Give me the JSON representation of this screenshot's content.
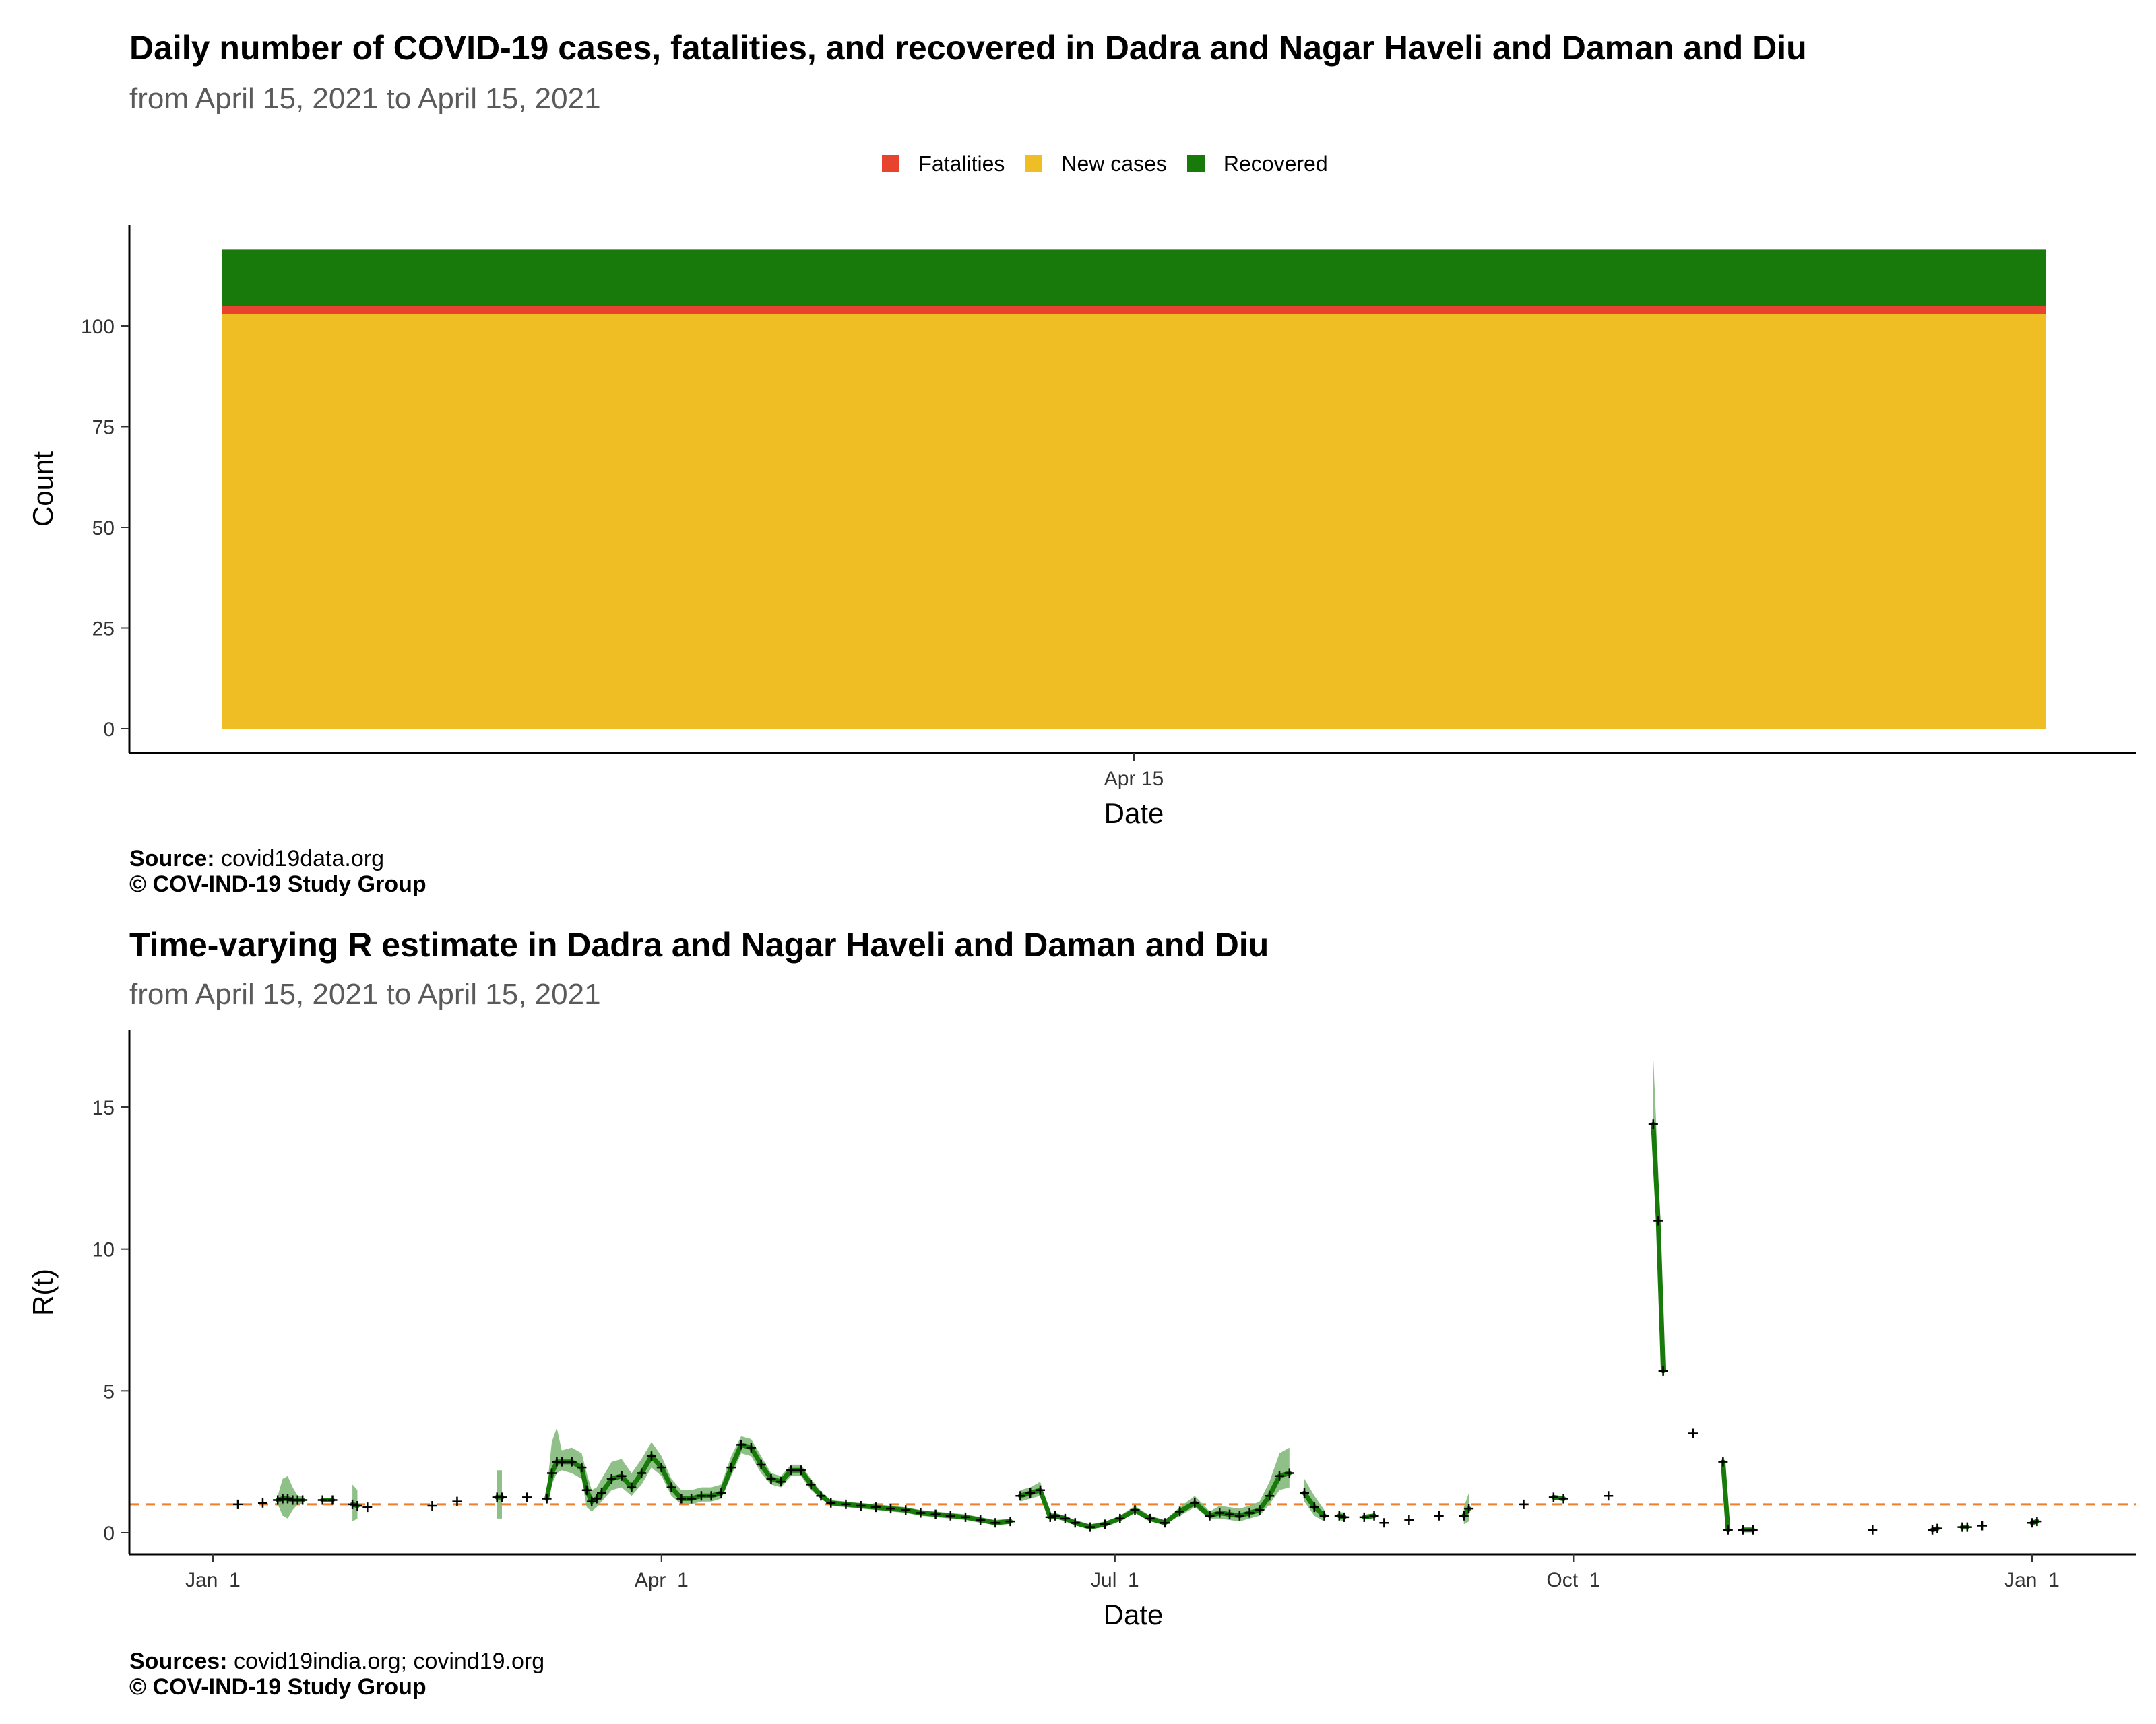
{
  "chart_data": [
    {
      "type": "bar",
      "stacked": true,
      "title": "Daily number of COVID-19 cases, fatalities, and recovered in Dadra and Nagar Haveli and Daman and Diu",
      "subtitle": "from April 15, 2021 to April 15, 2021",
      "xlabel": "Date",
      "ylabel": "Count",
      "categories": [
        "Apr 15"
      ],
      "series": [
        {
          "name": "New cases",
          "color": "#EFBE25",
          "values": [
            103
          ]
        },
        {
          "name": "Fatalities",
          "color": "#E8432E",
          "values": [
            2
          ]
        },
        {
          "name": "Recovered",
          "color": "#177A0B",
          "values": [
            14
          ]
        }
      ],
      "legend_order": [
        "Fatalities",
        "New cases",
        "Recovered"
      ],
      "ylim": [
        0,
        125
      ],
      "yticks": [
        0,
        25,
        50,
        75,
        100
      ],
      "legend_position": "top",
      "grid": false,
      "caption_source_label": "Source:",
      "caption_source": "covid19data.org",
      "caption_credit": "© COV-IND-19 Study Group"
    },
    {
      "type": "line",
      "title": "Time-varying R estimate in Dadra and Nagar Haveli and Daman and Diu",
      "subtitle": "from April 15, 2021 to April 15, 2021",
      "xlabel": "Date",
      "ylabel": "R(t)",
      "x_ticks": [
        {
          "label": "Jan  1",
          "date": "2021-01-01"
        },
        {
          "label": "Apr  1",
          "date": "2021-04-01"
        },
        {
          "label": "Jul  1",
          "date": "2021-07-01"
        },
        {
          "label": "Oct  1",
          "date": "2021-10-01"
        },
        {
          "label": "Jan  1",
          "date": "2022-01-01"
        }
      ],
      "xlim": [
        "2020-12-27",
        "2022-01-06"
      ],
      "ylim": [
        -0.8,
        17.6
      ],
      "yticks": [
        0,
        5,
        10,
        15
      ],
      "reference_line": {
        "y": 1,
        "color": "#F07F2E",
        "style": "dashed"
      },
      "line_color": "#177A0B",
      "band_color": "#82B97A",
      "point_color": "#000000",
      "grid": false,
      "series": [
        {
          "segments": [
            {
              "x": [
                "2021-01-06"
              ],
              "y": [
                1.0
              ],
              "lo": [
                1.0
              ],
              "hi": [
                1.0
              ]
            },
            {
              "x": [
                "2021-01-11"
              ],
              "y": [
                1.05
              ],
              "lo": [
                1.05
              ],
              "hi": [
                1.05
              ]
            },
            {
              "x": [
                "2021-01-14",
                "2021-01-15",
                "2021-01-16",
                "2021-01-17",
                "2021-01-18",
                "2021-01-19"
              ],
              "y": [
                1.15,
                1.2,
                1.2,
                1.15,
                1.15,
                1.15
              ],
              "lo": [
                1.0,
                0.6,
                0.5,
                0.8,
                1.0,
                1.0
              ],
              "hi": [
                1.3,
                1.9,
                2.0,
                1.6,
                1.3,
                1.3
              ]
            },
            {
              "x": [
                "2021-01-23",
                "2021-01-25"
              ],
              "y": [
                1.15,
                1.15
              ],
              "lo": [
                1.15,
                1.15
              ],
              "hi": [
                1.15,
                1.15
              ]
            },
            {
              "x": [
                "2021-01-29",
                "2021-01-30"
              ],
              "y": [
                1.0,
                0.95
              ],
              "lo": [
                0.4,
                0.5
              ],
              "hi": [
                1.7,
                1.5
              ]
            },
            {
              "x": [
                "2021-02-01"
              ],
              "y": [
                0.9
              ],
              "lo": [
                0.9
              ],
              "hi": [
                0.9
              ]
            },
            {
              "x": [
                "2021-02-14"
              ],
              "y": [
                0.95
              ],
              "lo": [
                0.95
              ],
              "hi": [
                0.95
              ]
            },
            {
              "x": [
                "2021-02-19"
              ],
              "y": [
                1.1
              ],
              "lo": [
                1.1
              ],
              "hi": [
                1.1
              ]
            },
            {
              "x": [
                "2021-02-27",
                "2021-02-28"
              ],
              "y": [
                1.25,
                1.25
              ],
              "lo": [
                0.5,
                0.5
              ],
              "hi": [
                2.2,
                2.2
              ]
            },
            {
              "x": [
                "2021-03-05"
              ],
              "y": [
                1.25
              ],
              "lo": [
                1.25
              ],
              "hi": [
                1.25
              ]
            },
            {
              "x": [
                "2021-03-09",
                "2021-03-10",
                "2021-03-11",
                "2021-03-12",
                "2021-03-14",
                "2021-03-16",
                "2021-03-17",
                "2021-03-18",
                "2021-03-19",
                "2021-03-20",
                "2021-03-22",
                "2021-03-24",
                "2021-03-26",
                "2021-03-28",
                "2021-03-30",
                "2021-04-01",
                "2021-04-03",
                "2021-04-05",
                "2021-04-07",
                "2021-04-09",
                "2021-04-11",
                "2021-04-13",
                "2021-04-15",
                "2021-04-17",
                "2021-04-19",
                "2021-04-21",
                "2021-04-23",
                "2021-04-25",
                "2021-04-27",
                "2021-04-29",
                "2021-05-01",
                "2021-05-03",
                "2021-05-05",
                "2021-05-08",
                "2021-05-11",
                "2021-05-14",
                "2021-05-17",
                "2021-05-20",
                "2021-05-23",
                "2021-05-26",
                "2021-05-29",
                "2021-06-01",
                "2021-06-04",
                "2021-06-07",
                "2021-06-10"
              ],
              "y": [
                1.2,
                2.1,
                2.5,
                2.5,
                2.5,
                2.3,
                1.5,
                1.1,
                1.2,
                1.4,
                1.9,
                2.0,
                1.6,
                2.1,
                2.7,
                2.3,
                1.6,
                1.2,
                1.2,
                1.3,
                1.3,
                1.4,
                2.3,
                3.1,
                3.0,
                2.4,
                1.9,
                1.8,
                2.2,
                2.2,
                1.7,
                1.3,
                1.05,
                1.0,
                0.95,
                0.9,
                0.85,
                0.8,
                0.7,
                0.65,
                0.6,
                0.55,
                0.45,
                0.35,
                0.4
              ],
              "lo": [
                1.0,
                1.7,
                2.1,
                2.2,
                2.1,
                1.9,
                0.9,
                0.75,
                0.9,
                1.1,
                1.5,
                1.6,
                1.3,
                1.7,
                2.3,
                2.0,
                1.3,
                1.0,
                1.0,
                1.1,
                1.1,
                1.2,
                2.0,
                2.8,
                2.7,
                2.1,
                1.7,
                1.6,
                2.0,
                2.0,
                1.5,
                1.2,
                0.95,
                0.9,
                0.85,
                0.8,
                0.75,
                0.7,
                0.6,
                0.55,
                0.5,
                0.45,
                0.35,
                0.3,
                0.35
              ],
              "hi": [
                1.5,
                3.2,
                3.7,
                2.9,
                3.0,
                2.8,
                2.1,
                1.5,
                1.6,
                1.9,
                2.5,
                2.6,
                2.1,
                2.6,
                3.2,
                2.7,
                1.9,
                1.5,
                1.5,
                1.6,
                1.6,
                1.7,
                2.7,
                3.4,
                3.3,
                2.7,
                2.1,
                2.0,
                2.4,
                2.4,
                1.9,
                1.45,
                1.15,
                1.1,
                1.05,
                1.0,
                0.95,
                0.9,
                0.8,
                0.75,
                0.7,
                0.65,
                0.55,
                0.45,
                0.5
              ]
            },
            {
              "x": [
                "2021-06-12",
                "2021-06-14",
                "2021-06-16",
                "2021-06-18",
                "2021-06-19",
                "2021-06-21",
                "2021-06-23",
                "2021-06-26",
                "2021-06-29",
                "2021-07-02",
                "2021-07-05",
                "2021-07-08",
                "2021-07-11",
                "2021-07-14",
                "2021-07-17",
                "2021-07-20",
                "2021-07-22",
                "2021-07-24",
                "2021-07-26",
                "2021-07-28",
                "2021-07-30",
                "2021-08-01",
                "2021-08-03",
                "2021-08-05"
              ],
              "y": [
                1.3,
                1.4,
                1.5,
                0.55,
                0.6,
                0.5,
                0.35,
                0.2,
                0.3,
                0.5,
                0.8,
                0.5,
                0.35,
                0.75,
                1.05,
                0.6,
                0.7,
                0.65,
                0.6,
                0.7,
                0.8,
                1.3,
                2.0,
                2.1
              ],
              "lo": [
                1.1,
                1.2,
                1.3,
                0.45,
                0.5,
                0.4,
                0.3,
                0.15,
                0.25,
                0.4,
                0.7,
                0.4,
                0.3,
                0.6,
                0.9,
                0.5,
                0.5,
                0.45,
                0.4,
                0.5,
                0.6,
                1.0,
                1.5,
                1.6
              ],
              "hi": [
                1.5,
                1.6,
                1.8,
                0.7,
                0.7,
                0.6,
                0.45,
                0.3,
                0.4,
                0.6,
                0.95,
                0.6,
                0.45,
                0.9,
                1.3,
                0.75,
                0.95,
                0.9,
                0.85,
                0.95,
                1.1,
                1.8,
                2.8,
                3.0
              ]
            },
            {
              "x": [
                "2021-08-08",
                "2021-08-10",
                "2021-08-12"
              ],
              "y": [
                1.4,
                0.9,
                0.6
              ],
              "lo": [
                1.1,
                0.6,
                0.4
              ],
              "hi": [
                1.9,
                1.3,
                0.8
              ]
            },
            {
              "x": [
                "2021-08-15",
                "2021-08-16"
              ],
              "y": [
                0.6,
                0.55
              ],
              "lo": [
                0.45,
                0.4
              ],
              "hi": [
                0.75,
                0.7
              ]
            },
            {
              "x": [
                "2021-08-20",
                "2021-08-22"
              ],
              "y": [
                0.55,
                0.6
              ],
              "lo": [
                0.55,
                0.6
              ],
              "hi": [
                0.55,
                0.6
              ]
            },
            {
              "x": [
                "2021-08-24"
              ],
              "y": [
                0.35
              ],
              "lo": [
                0.35
              ],
              "hi": [
                0.35
              ]
            },
            {
              "x": [
                "2021-08-29"
              ],
              "y": [
                0.45
              ],
              "lo": [
                0.45
              ],
              "hi": [
                0.45
              ]
            },
            {
              "x": [
                "2021-09-04"
              ],
              "y": [
                0.6
              ],
              "lo": [
                0.6
              ],
              "hi": [
                0.6
              ]
            },
            {
              "x": [
                "2021-09-09",
                "2021-09-10"
              ],
              "y": [
                0.6,
                0.85
              ],
              "lo": [
                0.3,
                0.4
              ],
              "hi": [
                0.9,
                1.4
              ]
            },
            {
              "x": [
                "2021-09-21"
              ],
              "y": [
                1.0
              ],
              "lo": [
                1.0
              ],
              "hi": [
                1.0
              ]
            },
            {
              "x": [
                "2021-09-27",
                "2021-09-29"
              ],
              "y": [
                1.25,
                1.2
              ],
              "lo": [
                1.25,
                1.2
              ],
              "hi": [
                1.25,
                1.2
              ]
            },
            {
              "x": [
                "2021-10-08"
              ],
              "y": [
                1.3
              ],
              "lo": [
                1.3
              ],
              "hi": [
                1.3
              ]
            },
            {
              "x": [
                "2021-10-17",
                "2021-10-18",
                "2021-10-19"
              ],
              "y": [
                14.4,
                11.0,
                5.7
              ],
              "lo": [
                12.8,
                9.8,
                5.0
              ],
              "hi": [
                16.8,
                12.8,
                6.6
              ]
            },
            {
              "x": [
                "2021-10-25"
              ],
              "y": [
                3.5
              ],
              "lo": [
                3.5
              ],
              "hi": [
                3.5
              ]
            },
            {
              "x": [
                "2021-10-31",
                "2021-11-01"
              ],
              "y": [
                2.5,
                0.1
              ],
              "lo": [
                2.3,
                0.05
              ],
              "hi": [
                2.7,
                0.15
              ]
            },
            {
              "x": [
                "2021-11-04",
                "2021-11-06"
              ],
              "y": [
                0.1,
                0.1
              ],
              "lo": [
                0.1,
                0.1
              ],
              "hi": [
                0.1,
                0.1
              ]
            },
            {
              "x": [
                "2021-11-30"
              ],
              "y": [
                0.1
              ],
              "lo": [
                0.1
              ],
              "hi": [
                0.1
              ]
            },
            {
              "x": [
                "2021-12-12",
                "2021-12-13"
              ],
              "y": [
                0.1,
                0.15
              ],
              "lo": [
                0.1,
                0.15
              ],
              "hi": [
                0.1,
                0.15
              ]
            },
            {
              "x": [
                "2021-12-18",
                "2021-12-19"
              ],
              "y": [
                0.2,
                0.2
              ],
              "lo": [
                0.2,
                0.2
              ],
              "hi": [
                0.2,
                0.2
              ]
            },
            {
              "x": [
                "2021-12-22"
              ],
              "y": [
                0.25
              ],
              "lo": [
                0.25
              ],
              "hi": [
                0.25
              ]
            },
            {
              "x": [
                "2022-01-01",
                "2022-01-02"
              ],
              "y": [
                0.35,
                0.4
              ],
              "lo": [
                0.3,
                0.35
              ],
              "hi": [
                0.4,
                0.5
              ]
            }
          ]
        }
      ],
      "caption_source_label": "Sources:",
      "caption_source": "covid19india.org; covind19.org",
      "caption_credit": "© COV-IND-19 Study Group"
    }
  ]
}
